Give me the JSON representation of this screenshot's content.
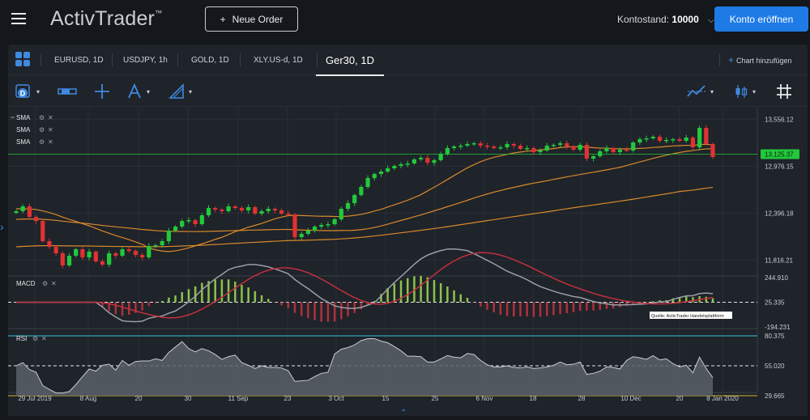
{
  "header": {
    "logo": "ActivTrader",
    "logo_tm": "™",
    "new_order_label": "Neue Order",
    "balance_label": "Kontostand:",
    "balance_value": "10000",
    "open_account_label": "Konto eröffnen",
    "accent": "#1e7be6"
  },
  "tabs": [
    {
      "label": "EURUSD, 1D"
    },
    {
      "label": "USDJPY, 1h"
    },
    {
      "label": "GOLD, 1D"
    },
    {
      "label": "XLY.US-d, 1D"
    },
    {
      "label": "Ger30, 1D",
      "active": true
    }
  ],
  "add_chart_label": "Chart hinzufügen",
  "toolbar": {
    "tools": [
      "calendar-icon",
      "ruler-icon",
      "crosshair-icon",
      "pen-icon",
      "drawing-icon",
      "indicator-icon",
      "candle-type-icon",
      "grid-icon"
    ]
  },
  "indicators": {
    "main": [
      "SMA",
      "SMA",
      "SMA"
    ],
    "macd_label": "MACD",
    "rsi_label": "RSI"
  },
  "source_note": "Quelle: ActivTrader Handelsplattform",
  "chart_data": {
    "type": "candlestick",
    "symbol": "Ger30",
    "timeframe": "1D",
    "price_axis": [
      "13,556.12",
      "12,976.15",
      "12,396.18",
      "11,816.21"
    ],
    "price_axis_values": [
      13556.12,
      12976.15,
      12396.18,
      11816.21
    ],
    "current_price": "13,125.37",
    "current_price_value": 13125.37,
    "ylim": [
      11650,
      13620
    ],
    "macd_axis": [
      "244.910",
      "25.335",
      "-194.231"
    ],
    "macd_values": [
      244.91,
      25.335,
      -194.231
    ],
    "rsi_axis": [
      "80.375",
      "55.020",
      "29.665"
    ],
    "rsi_values": [
      80.375,
      55.02,
      29.665
    ],
    "x_labels": [
      "29 Jul 2019",
      "8 Aug",
      "20",
      "30",
      "11 Sep",
      "23",
      "3 Oct",
      "15",
      "25",
      "6 Nov",
      "18",
      "28",
      "10 Dec",
      "20",
      "8 Jan 2020"
    ],
    "closes": [
      12420,
      12480,
      12350,
      12300,
      12050,
      11980,
      11900,
      11750,
      11870,
      11950,
      11850,
      11920,
      11800,
      11760,
      11900,
      11870,
      11950,
      11930,
      11880,
      11850,
      11990,
      12000,
      12050,
      12180,
      12230,
      12300,
      12310,
      12260,
      12370,
      12460,
      12440,
      12420,
      12480,
      12460,
      12430,
      12470,
      12390,
      12420,
      12450,
      12430,
      12390,
      12380,
      12100,
      12140,
      12180,
      12230,
      12250,
      12260,
      12320,
      12450,
      12520,
      12620,
      12720,
      12830,
      12880,
      12910,
      12950,
      12980,
      13000,
      13010,
      13060,
      13080,
      13020,
      13050,
      13130,
      13200,
      13220,
      13230,
      13250,
      13260,
      13230,
      13220,
      13200,
      13210,
      13250,
      13230,
      13190,
      13200,
      13150,
      13170,
      13230,
      13240,
      13260,
      13220,
      13180,
      13240,
      13070,
      13100,
      13160,
      13200,
      13150,
      13180,
      13170,
      13270,
      13310,
      13320,
      13340,
      13290,
      13300,
      13310,
      13290,
      13330,
      13210,
      13450,
      13250,
      13090
    ],
    "up_color": "#21c93b",
    "down_color": "#e03232"
  }
}
